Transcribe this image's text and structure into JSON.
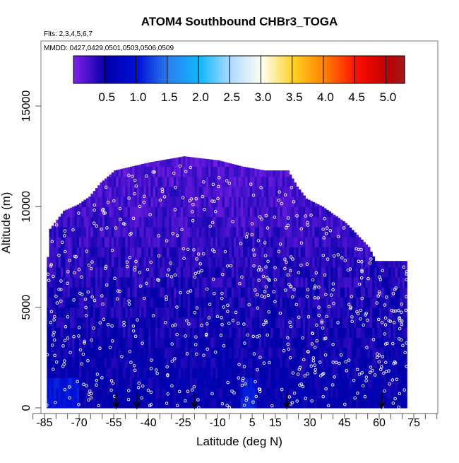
{
  "chart_data": {
    "type": "heatmap",
    "title": "ATOM4 Southbound CHBr3_TOGA",
    "subtitle_flights": "Flts: 2,3,4,5,6,7",
    "subtitle_dates": "MMDD: 0427,0429,0501,0503,0506,0509",
    "xlabel": "Latitude (deg N)",
    "ylabel": "Altitude (m)",
    "xlim": [
      -90,
      85
    ],
    "ylim": [
      0,
      17500
    ],
    "x_ticks": [
      "-85",
      "-70",
      "-55",
      "-40",
      "-25",
      "-10",
      "5",
      "15",
      "30",
      "45",
      "60",
      "75"
    ],
    "x_tick_values": [
      -85,
      -70,
      -55,
      -40,
      -25,
      -10,
      5,
      15,
      30,
      45,
      60,
      75
    ],
    "y_ticks": [
      "0",
      "5000",
      "10000",
      "15000"
    ],
    "y_tick_values": [
      0,
      5000,
      10000,
      15000
    ],
    "colorbar": {
      "range": [
        0,
        5.3
      ],
      "tick_labels": [
        "0.5",
        "1.0",
        "1.5",
        "2.0",
        "2.5",
        "3.0",
        "3.5",
        "4.0",
        "4.5",
        "5.0"
      ],
      "tick_values": [
        0.5,
        1.0,
        1.5,
        2.0,
        2.5,
        3.0,
        3.5,
        4.0,
        4.5,
        5.0
      ],
      "stops": [
        [
          0,
          "#7b1fe8"
        ],
        [
          0.5,
          "#0000a8"
        ],
        [
          1.0,
          "#0010d8"
        ],
        [
          1.5,
          "#2a80f0"
        ],
        [
          2.0,
          "#10b8ff"
        ],
        [
          2.5,
          "#b0daff"
        ],
        [
          3.0,
          "#fffff0"
        ],
        [
          3.5,
          "#ffd020"
        ],
        [
          4.0,
          "#ff8000"
        ],
        [
          4.5,
          "#ff1000"
        ],
        [
          5.0,
          "#c00000"
        ],
        [
          5.3,
          "#a01c20"
        ]
      ]
    },
    "curtain_top_profile": {
      "latitude": [
        -84,
        -83,
        -77,
        -71,
        -66,
        -61,
        -55,
        -40,
        -25,
        -10,
        0,
        10,
        20,
        24,
        28,
        35,
        45,
        50,
        55,
        58
      ],
      "max_altitude_m": [
        7500,
        8900,
        9800,
        10100,
        10500,
        11200,
        11800,
        12200,
        12500,
        12300,
        12000,
        11800,
        11800,
        11000,
        10400,
        10000,
        9200,
        8600,
        8000,
        7300
      ]
    },
    "curtain_lat_range": [
      -84,
      72
    ],
    "typical_value_range": [
      0.1,
      0.9
    ],
    "profile_arrows_latitude": [
      -54,
      -45,
      -20,
      20,
      61
    ]
  }
}
